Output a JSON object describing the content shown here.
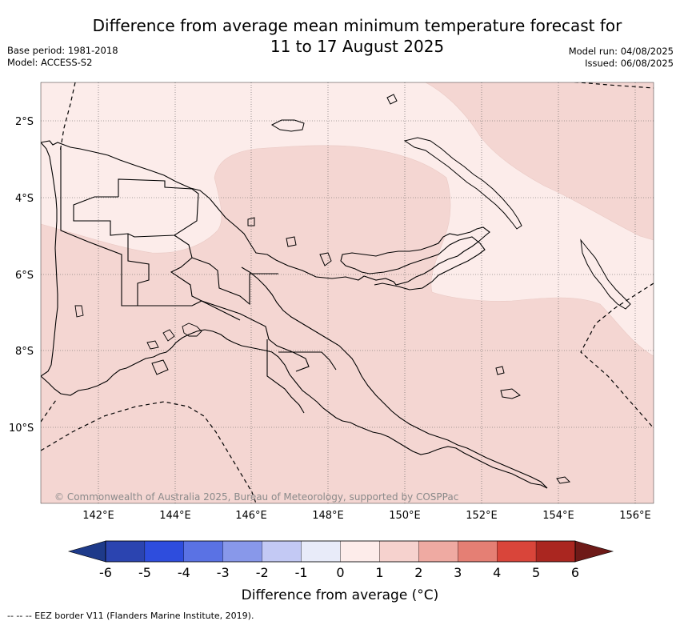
{
  "header": {
    "title_line1": "Difference from average mean minimum temperature forecast for",
    "title_line2": "11 to 17 August 2025",
    "base_period": "Base period: 1981-2018",
    "model": "Model: ACCESS-S2",
    "model_run": "Model run: 04/08/2025",
    "issued": "Issued: 06/08/2025"
  },
  "map": {
    "lat_labels": [
      "2°S",
      "4°S",
      "6°S",
      "8°S",
      "10°S"
    ],
    "lon_labels": [
      "142°E",
      "144°E",
      "146°E",
      "148°E",
      "150°E",
      "152°E",
      "154°E",
      "156°E"
    ],
    "copyright": "© Commonwealth of Australia 2025, Bureau of Meteorology, supported by COSPPac",
    "field_colors": {
      "anomaly_1_to_2": "#f4d6d2",
      "anomaly_0_to_1": "#fcecea"
    }
  },
  "colorbar": {
    "ticks": [
      "-6",
      "-5",
      "-4",
      "-3",
      "-2",
      "-1",
      "0",
      "1",
      "2",
      "3",
      "4",
      "5",
      "6"
    ],
    "colors": [
      "#1e3a8a",
      "#2b44b0",
      "#2e4ddd",
      "#5a72e4",
      "#8898ea",
      "#c3c9f4",
      "#e8ebf9",
      "#fdecea",
      "#f6d2ce",
      "#efaaa2",
      "#e57f74",
      "#d9453a",
      "#aa2620",
      "#6e1a18"
    ],
    "label": "Difference from average (°C)"
  },
  "footer": {
    "eez_note": "--  --  -- EEZ border V11 (Flanders Marine Institute, 2019)."
  }
}
